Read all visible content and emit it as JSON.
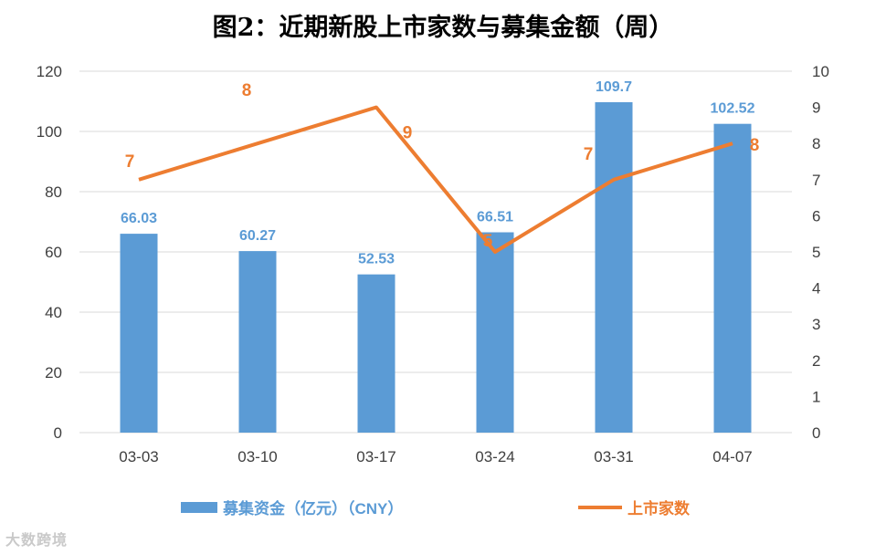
{
  "chart_data": {
    "type": "bar+line",
    "title": "图2：近期新股上市家数与募集金额（周）",
    "categories": [
      "03-03",
      "03-10",
      "03-17",
      "03-24",
      "03-31",
      "04-07"
    ],
    "series": [
      {
        "name": "募集资金（亿元）（CNY）",
        "type": "bar",
        "axis": "left",
        "values": [
          66.03,
          60.27,
          52.53,
          66.51,
          109.7,
          102.52
        ],
        "labels": [
          "66.03",
          "60.27",
          "52.53",
          "66.51",
          "109.7",
          "102.52"
        ],
        "color": "#5b9bd5"
      },
      {
        "name": "上市家数",
        "type": "line",
        "axis": "right",
        "values": [
          7,
          8,
          9,
          5,
          7,
          8
        ],
        "labels": [
          "7",
          "8",
          "9",
          "5",
          "7",
          "8"
        ],
        "color": "#ed7d31"
      }
    ],
    "y_left": {
      "min": 0,
      "max": 120,
      "ticks": [
        "0",
        "20",
        "40",
        "60",
        "80",
        "100",
        "120"
      ]
    },
    "y_right": {
      "min": 0,
      "max": 10,
      "ticks": [
        "0",
        "1",
        "2",
        "3",
        "4",
        "5",
        "6",
        "7",
        "8",
        "9",
        "10"
      ]
    },
    "grid": true,
    "legend_position": "bottom"
  },
  "watermark": "大数跨境"
}
